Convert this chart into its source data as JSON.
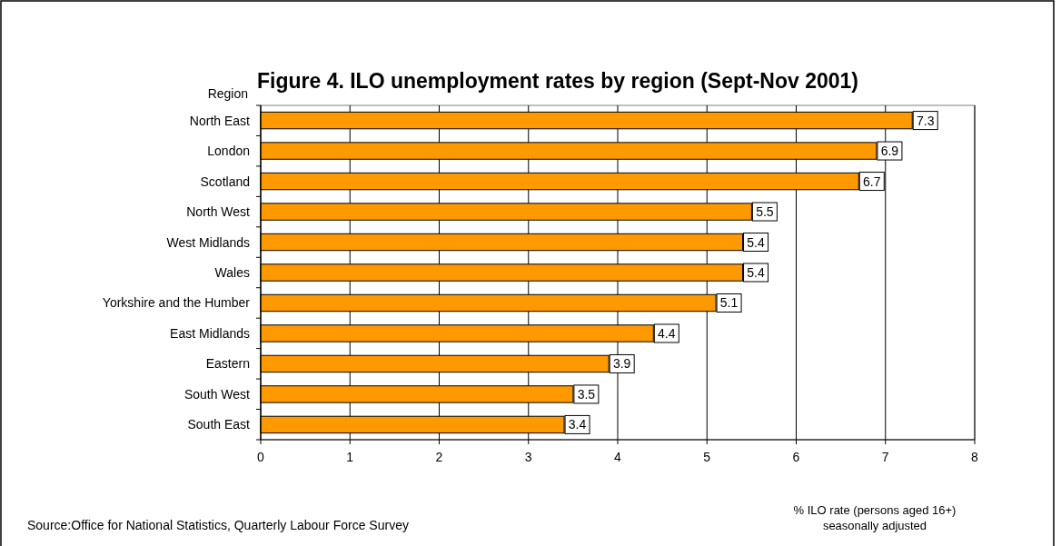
{
  "chart_data": {
    "type": "bar",
    "orientation": "horizontal",
    "title": "Figure 4.  ILO unemployment rates by region (Sept-Nov 2001)",
    "ylabel": "Region",
    "xlabel": "% ILO rate (persons aged 16+)\nseasonally adjusted",
    "categories": [
      "North East",
      "London",
      "Scotland",
      "North West",
      "West Midlands",
      "Wales",
      "Yorkshire and the Humber",
      "East Midlands",
      "Eastern",
      "South West",
      "South East"
    ],
    "values": [
      7.3,
      6.9,
      6.7,
      5.5,
      5.4,
      5.4,
      5.1,
      4.4,
      3.9,
      3.5,
      3.4
    ],
    "color": "#ff9900",
    "xlim": [
      0,
      8
    ],
    "xticks": [
      0,
      1,
      2,
      3,
      4,
      5,
      6,
      7,
      8
    ],
    "grid": "x",
    "data_labels": true,
    "annotations": [
      "Source:Office for National Statistics, Quarterly Labour Force Survey"
    ]
  }
}
